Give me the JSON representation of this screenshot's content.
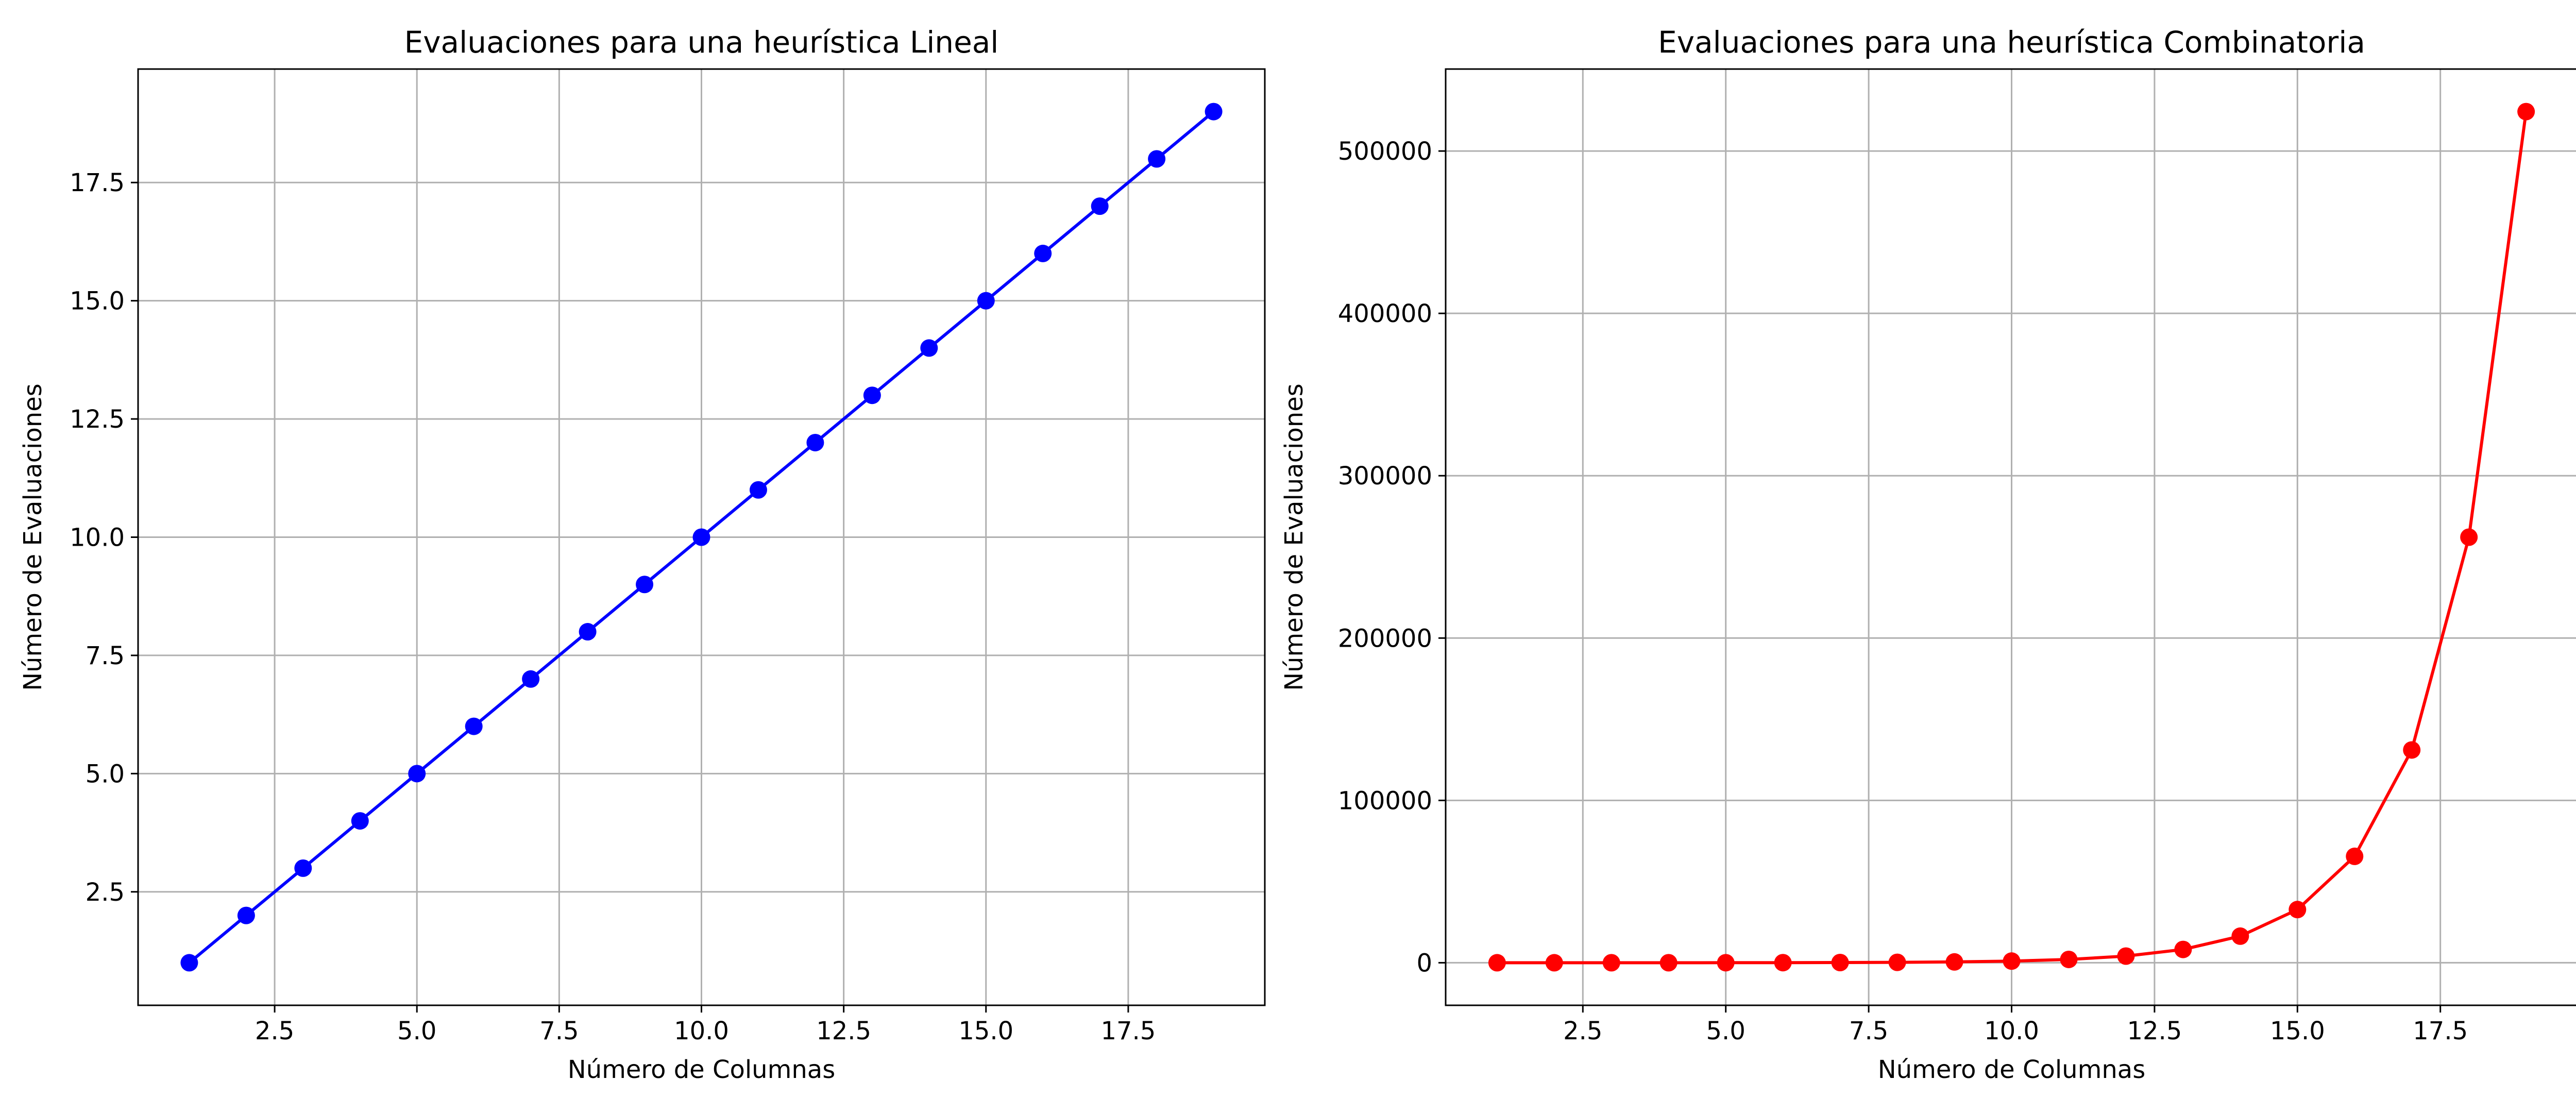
{
  "chart_data": [
    {
      "type": "line",
      "title": "Evaluaciones para una heurística Lineal",
      "xlabel": "Número de Columnas",
      "ylabel": "Número de Evaluaciones",
      "xlim": [
        0.1,
        19.9
      ],
      "ylim": [
        0.1,
        19.9
      ],
      "xticks": [
        "2.5",
        "5.0",
        "7.5",
        "10.0",
        "12.5",
        "15.0",
        "17.5"
      ],
      "yticks": [
        "2.5",
        "5.0",
        "7.5",
        "10.0",
        "12.5",
        "15.0",
        "17.5"
      ],
      "grid": true,
      "series": [
        {
          "color": "#0000ff",
          "marker": "circle",
          "x": [
            1,
            2,
            3,
            4,
            5,
            6,
            7,
            8,
            9,
            10,
            11,
            12,
            13,
            14,
            15,
            16,
            17,
            18,
            19
          ],
          "values": [
            1,
            2,
            3,
            4,
            5,
            6,
            7,
            8,
            9,
            10,
            11,
            12,
            13,
            14,
            15,
            16,
            17,
            18,
            19
          ]
        }
      ]
    },
    {
      "type": "line",
      "title": "Evaluaciones para una heurística Combinatoria",
      "xlabel": "Número de Columnas",
      "ylabel": "Número de Evaluaciones",
      "xlim": [
        0.1,
        19.9
      ],
      "ylim": [
        -26214,
        550502
      ],
      "xticks": [
        "2.5",
        "5.0",
        "7.5",
        "10.0",
        "12.5",
        "15.0",
        "17.5"
      ],
      "yticks": [
        "0",
        "100000",
        "200000",
        "300000",
        "400000",
        "500000"
      ],
      "grid": true,
      "series": [
        {
          "color": "#ff0000",
          "marker": "circle",
          "x": [
            1,
            2,
            3,
            4,
            5,
            6,
            7,
            8,
            9,
            10,
            11,
            12,
            13,
            14,
            15,
            16,
            17,
            18,
            19
          ],
          "values": [
            1,
            3,
            7,
            15,
            31,
            63,
            127,
            255,
            511,
            1023,
            2047,
            4095,
            8191,
            16383,
            32767,
            65535,
            131071,
            262143,
            524287
          ]
        }
      ]
    }
  ]
}
